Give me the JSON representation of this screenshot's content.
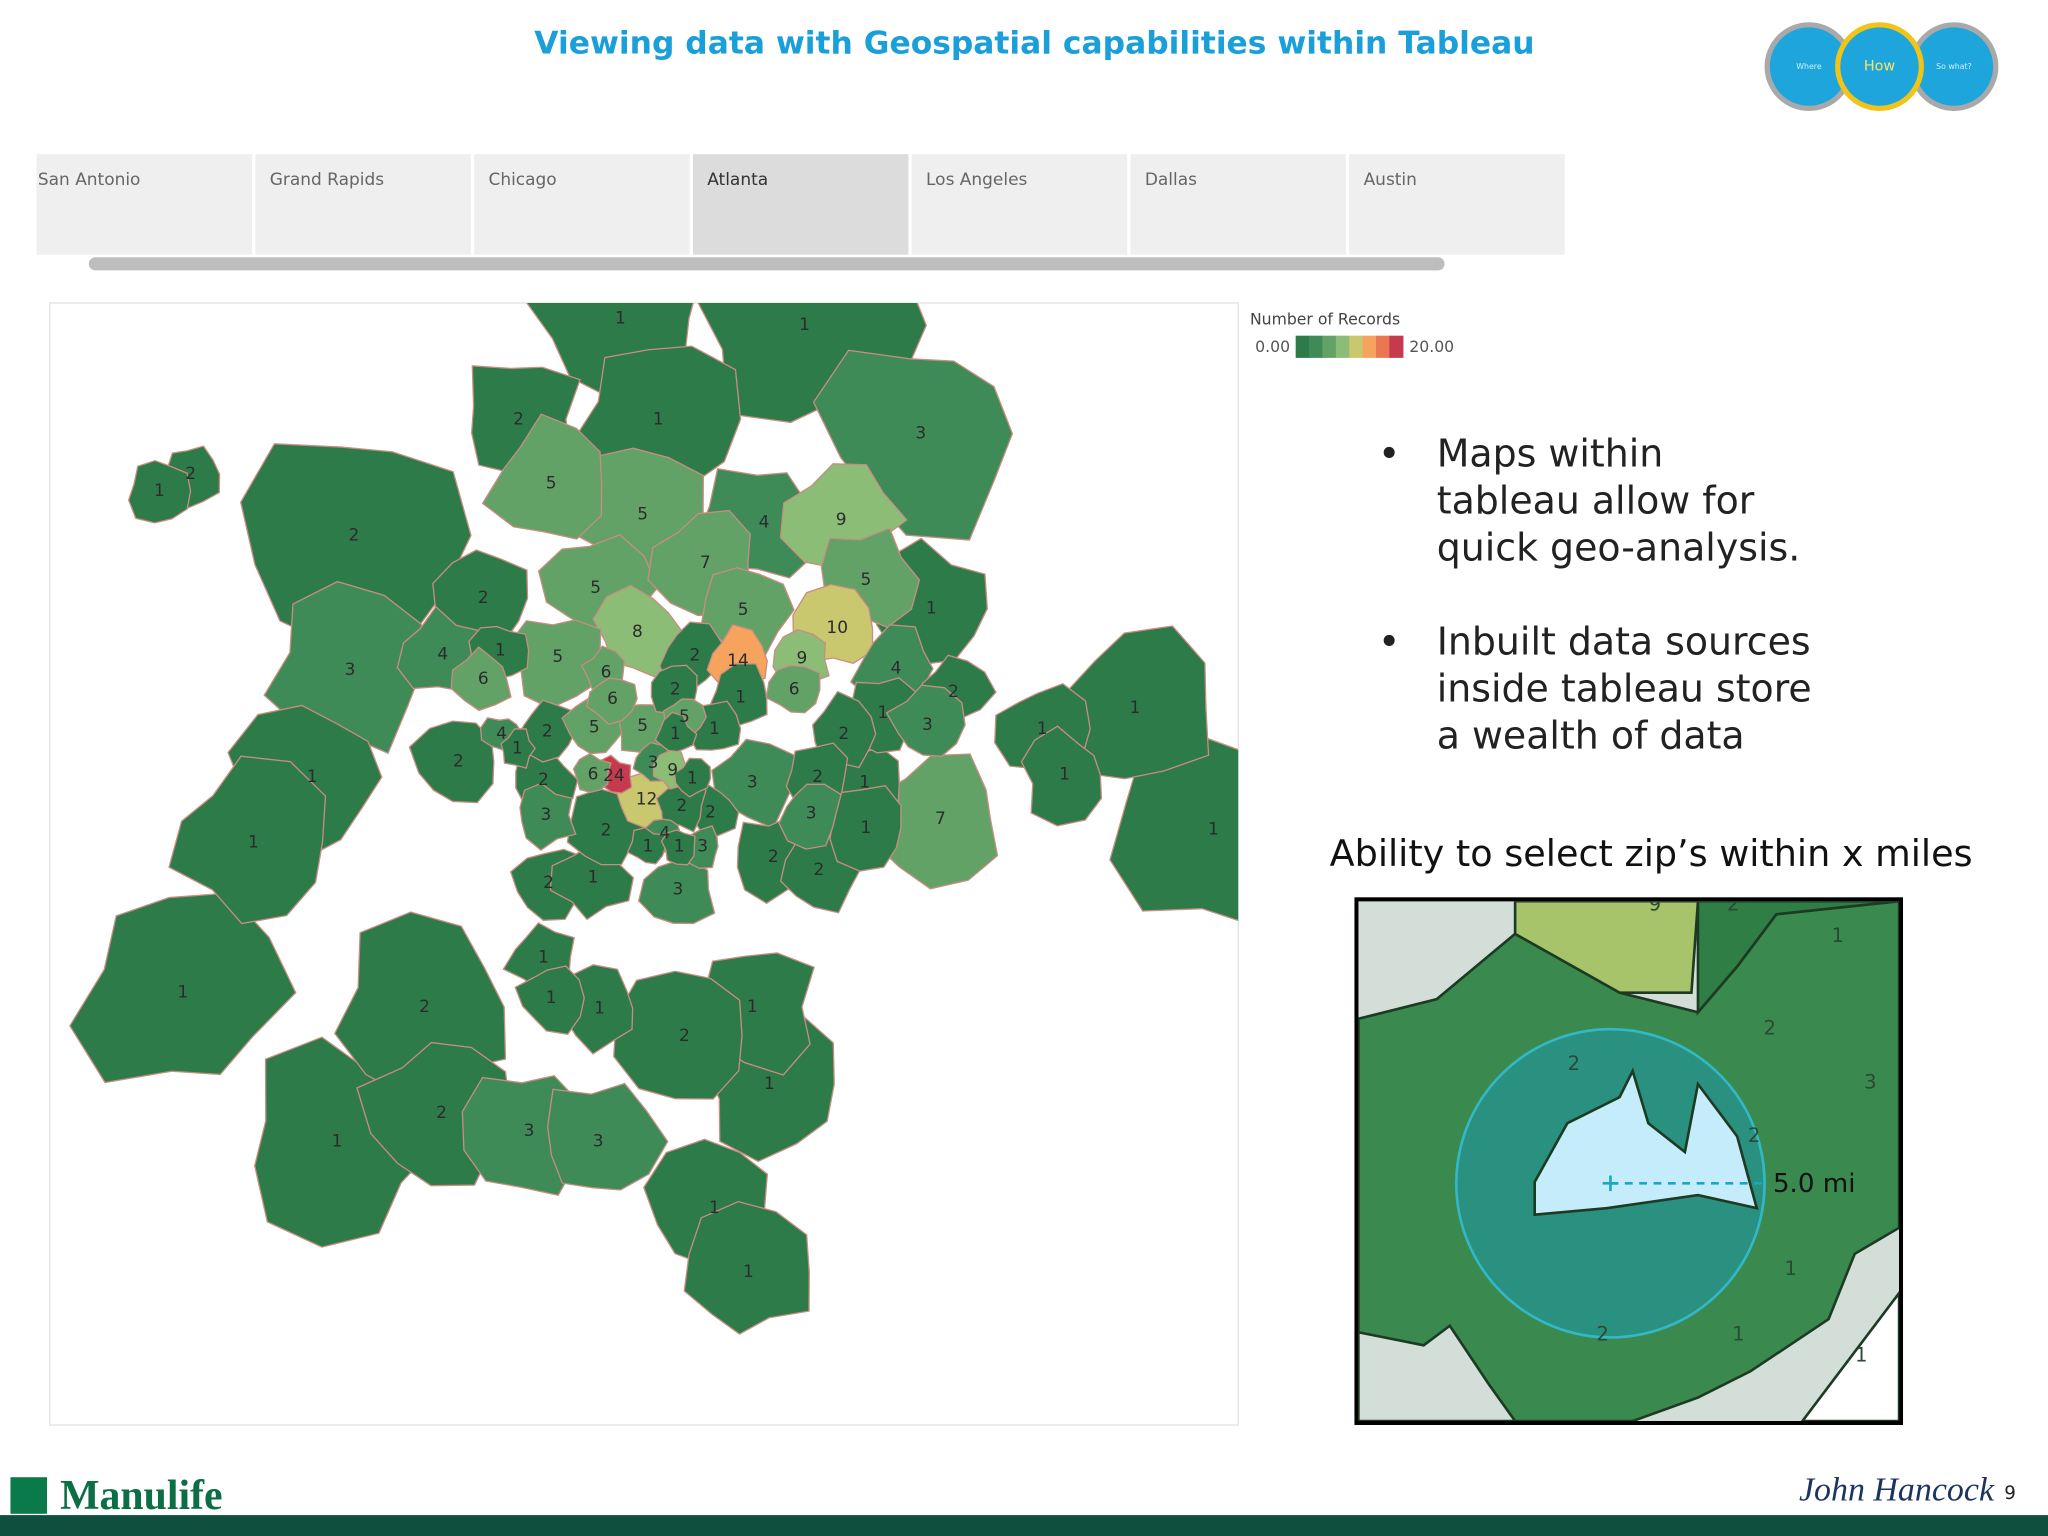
{
  "header": {
    "title": "Viewing data with Geospatial capabilities within Tableau",
    "nav": [
      "Where",
      "How",
      "So what?"
    ]
  },
  "tabs": [
    "San Antonio",
    "Grand Rapids",
    "Chicago",
    "Atlanta",
    "Los Angeles",
    "Dallas",
    "Austin"
  ],
  "selected_tab": 3,
  "map": {
    "legend": {
      "title": "Number of Records",
      "range": [
        {
          "value": 0,
          "label": "0.00"
        },
        {
          "value": 20,
          "label": "20.00"
        }
      ],
      "colors": [
        "#2e7b4a",
        "#3f8b57",
        "#62a266",
        "#8bbd77",
        "#c9c86e",
        "#f5a35d",
        "#eb7752",
        "#c63a4d"
      ]
    },
    "region_values": [
      1,
      1,
      2,
      1,
      3,
      2,
      1,
      5,
      5,
      4,
      9,
      2,
      7,
      5,
      5,
      2,
      5,
      1,
      8,
      10,
      4,
      1,
      2,
      14,
      9,
      3,
      5,
      6,
      6,
      4,
      2,
      6,
      2,
      6,
      1,
      1,
      5,
      4,
      2,
      5,
      5,
      1,
      1,
      2,
      3,
      1,
      1,
      1,
      2,
      3,
      24,
      6,
      9,
      1,
      1,
      2,
      3,
      2,
      1,
      1,
      12,
      2,
      2,
      3,
      3,
      7,
      2,
      4,
      1,
      1,
      1,
      1,
      1,
      3,
      2,
      2,
      2,
      1,
      3,
      1,
      1,
      1,
      1,
      2,
      1,
      2,
      1,
      2,
      3,
      3,
      1,
      1,
      1
    ]
  },
  "bullets": [
    [
      "Maps within",
      "tableau allow for",
      "quick geo-analysis."
    ],
    [
      "Inbuilt data sources",
      "inside tableau store",
      "a wealth of data"
    ]
  ],
  "caption": "Ability to select zip’s within x miles",
  "inset": {
    "labels": [
      "9",
      "2",
      "1",
      "2",
      "2",
      "3",
      "2",
      "1",
      "2",
      "1",
      "1"
    ],
    "distance": "5.0 mi"
  },
  "footer": {
    "brand": "Manulife",
    "partner": "John Hancock",
    "page": "9"
  }
}
